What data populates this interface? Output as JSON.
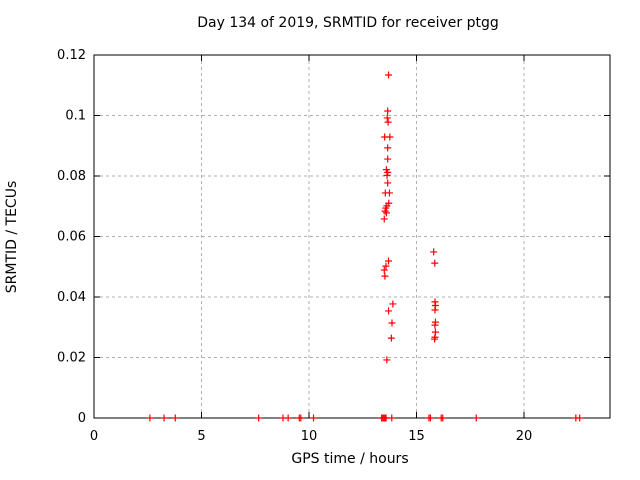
{
  "background": "#ffffff",
  "chart_data": {
    "type": "scatter",
    "title": "Day 134 of 2019, SRMTID for receiver ptgg",
    "xlabel": "GPS time / hours",
    "ylabel": "SRMTID / TECUs",
    "xlim": [
      0,
      24
    ],
    "ylim": [
      0,
      0.12
    ],
    "xticks": [
      [
        0,
        "0"
      ],
      [
        5,
        "5"
      ],
      [
        10,
        "10"
      ],
      [
        15,
        "15"
      ],
      [
        20,
        "20"
      ]
    ],
    "yticks": [
      [
        0,
        "0"
      ],
      [
        0.02,
        "0.02"
      ],
      [
        0.04,
        "0.04"
      ],
      [
        0.06,
        "0.06"
      ],
      [
        0.08,
        "0.08"
      ],
      [
        0.1,
        "0.1"
      ],
      [
        0.12,
        "0.12"
      ]
    ],
    "grid": true,
    "legend_position": "none",
    "marker": "plus",
    "marker_color": "#ff0000",
    "grid_color": "#b0b0b0",
    "axis_color": "#000000",
    "series": [
      {
        "name": "SRMTID",
        "points": [
          [
            13.7,
            0.1134
          ],
          [
            13.66,
            0.1015
          ],
          [
            13.64,
            0.0992
          ],
          [
            13.68,
            0.0978
          ],
          [
            13.52,
            0.0929
          ],
          [
            13.76,
            0.0929
          ],
          [
            13.66,
            0.0893
          ],
          [
            13.66,
            0.0856
          ],
          [
            13.6,
            0.0821
          ],
          [
            13.66,
            0.0812
          ],
          [
            13.63,
            0.0802
          ],
          [
            13.66,
            0.0777
          ],
          [
            13.55,
            0.0744
          ],
          [
            13.74,
            0.0744
          ],
          [
            13.71,
            0.071
          ],
          [
            13.62,
            0.0701
          ],
          [
            13.57,
            0.0694
          ],
          [
            13.54,
            0.0684
          ],
          [
            13.6,
            0.0678
          ],
          [
            13.5,
            0.0658
          ],
          [
            13.7,
            0.0519
          ],
          [
            13.58,
            0.0502
          ],
          [
            13.5,
            0.0489
          ],
          [
            13.53,
            0.0469
          ],
          [
            13.9,
            0.0377
          ],
          [
            13.7,
            0.0354
          ],
          [
            13.86,
            0.0314
          ],
          [
            13.83,
            0.0264
          ],
          [
            13.62,
            0.0192
          ],
          [
            15.8,
            0.0549
          ],
          [
            15.85,
            0.0512
          ],
          [
            15.86,
            0.0384
          ],
          [
            15.88,
            0.0372
          ],
          [
            15.86,
            0.0357
          ],
          [
            15.88,
            0.0317
          ],
          [
            15.86,
            0.0307
          ],
          [
            15.88,
            0.0284
          ],
          [
            15.86,
            0.0267
          ],
          [
            15.84,
            0.0261
          ],
          [
            2.6,
            0
          ],
          [
            3.26,
            0
          ],
          [
            3.78,
            0
          ],
          [
            7.66,
            0
          ],
          [
            8.79,
            0
          ],
          [
            9.03,
            0
          ],
          [
            9.55,
            0
          ],
          [
            9.62,
            0
          ],
          [
            10.21,
            0
          ],
          [
            13.38,
            0
          ],
          [
            13.43,
            0
          ],
          [
            13.48,
            0
          ],
          [
            13.53,
            0
          ],
          [
            13.58,
            0
          ],
          [
            13.85,
            0
          ],
          [
            15.58,
            0
          ],
          [
            15.65,
            0
          ],
          [
            16.15,
            0
          ],
          [
            16.22,
            0
          ],
          [
            17.78,
            0
          ],
          [
            22.41,
            0
          ],
          [
            22.59,
            0
          ]
        ]
      }
    ]
  }
}
